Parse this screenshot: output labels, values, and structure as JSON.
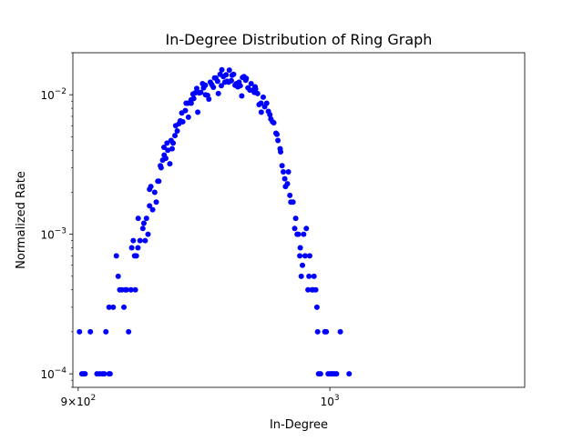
{
  "chart_data": {
    "type": "scatter",
    "title": "In-Degree Distribution of Ring Graph",
    "xlabel": "In-Degree",
    "ylabel": "Normalized Rate",
    "xscale": "log",
    "yscale": "log",
    "xlim": [
      898,
      1085
    ],
    "ylim": [
      8e-05,
      0.02
    ],
    "grid": false,
    "legend": "none",
    "marker_color": "#0000ff",
    "xticks": [
      {
        "value": 900,
        "label_base": "9×10",
        "label_exp": "2"
      },
      {
        "value": 1000,
        "label_base": "10",
        "label_exp": "3"
      }
    ],
    "yticks": [
      {
        "value": 0.0001,
        "label_base": "10",
        "label_exp": "−4"
      },
      {
        "value": 0.001,
        "label_base": "10",
        "label_exp": "−3"
      },
      {
        "value": 0.01,
        "label_base": "10",
        "label_exp": "−2"
      }
    ],
    "points": [
      [
        900.5,
        0.0002
      ],
      [
        901.4,
        0.0001
      ],
      [
        902.0,
        0.0001
      ],
      [
        902.6,
        0.0001
      ],
      [
        904.6,
        0.0002
      ],
      [
        907.1,
        0.0001
      ],
      [
        908.1,
        0.0001
      ],
      [
        909.2,
        0.0001
      ],
      [
        909.9,
        0.0001
      ],
      [
        911.7,
        0.0001
      ],
      [
        912.1,
        0.0001
      ],
      [
        910.5,
        0.0002
      ],
      [
        911.7,
        0.0003
      ],
      [
        913.3,
        0.0003
      ],
      [
        914.5,
        0.0007
      ],
      [
        915.2,
        0.0005
      ],
      [
        915.8,
        0.0004
      ],
      [
        916.6,
        0.0004
      ],
      [
        917.4,
        0.0003
      ],
      [
        917.9,
        0.0004
      ],
      [
        918.4,
        0.0004
      ],
      [
        919.2,
        0.0002
      ],
      [
        920.1,
        0.0004
      ],
      [
        920.4,
        0.0008
      ],
      [
        921.0,
        0.0009
      ],
      [
        921.8,
        0.0004
      ],
      [
        921.5,
        0.0007
      ],
      [
        922.2,
        0.0007
      ],
      [
        922.8,
        0.0008
      ],
      [
        922.9,
        0.0013
      ],
      [
        923.6,
        0.0009
      ],
      [
        924.7,
        0.0011
      ],
      [
        925.1,
        0.0012
      ],
      [
        925.6,
        0.0009
      ],
      [
        926.1,
        0.0013
      ],
      [
        926.7,
        0.001
      ],
      [
        927.3,
        0.0016
      ],
      [
        927.3,
        0.0021
      ],
      [
        927.8,
        0.0022
      ],
      [
        928.5,
        0.0015
      ],
      [
        929.3,
        0.002
      ],
      [
        929.9,
        0.0017
      ],
      [
        930.5,
        0.0024
      ],
      [
        930.9,
        0.0024
      ],
      [
        931.5,
        0.0031
      ],
      [
        931.8,
        0.003
      ],
      [
        932.4,
        0.0034
      ],
      [
        932.9,
        0.0042
      ],
      [
        933.0,
        0.0037
      ],
      [
        933.6,
        0.0035
      ],
      [
        934.1,
        0.0045
      ],
      [
        934.4,
        0.004
      ],
      [
        935.2,
        0.0032
      ],
      [
        935.7,
        0.0047
      ],
      [
        936.1,
        0.0041
      ],
      [
        936.5,
        0.0045
      ],
      [
        937.2,
        0.0051
      ],
      [
        937.5,
        0.006
      ],
      [
        938.1,
        0.0055
      ],
      [
        938.8,
        0.0062
      ],
      [
        939.3,
        0.0065
      ],
      [
        939.9,
        0.0074
      ],
      [
        940.3,
        0.0064
      ],
      [
        941.3,
        0.0077
      ],
      [
        941.6,
        0.0087
      ],
      [
        942.3,
        0.0087
      ],
      [
        942.5,
        0.0069
      ],
      [
        943.6,
        0.0087
      ],
      [
        943.6,
        0.0092
      ],
      [
        944.3,
        0.0101
      ],
      [
        944.6,
        0.0094
      ],
      [
        945.1,
        0.0103
      ],
      [
        945.8,
        0.0111
      ],
      [
        946.2,
        0.0075
      ],
      [
        946.8,
        0.0103
      ],
      [
        947.4,
        0.0104
      ],
      [
        948.1,
        0.012
      ],
      [
        948.5,
        0.0112
      ],
      [
        949.2,
        0.0117
      ],
      [
        949.3,
        0.01
      ],
      [
        950.1,
        0.0099
      ],
      [
        950.6,
        0.0093
      ],
      [
        951.2,
        0.0123
      ],
      [
        951.8,
        0.0118
      ],
      [
        952.4,
        0.0113
      ],
      [
        952.9,
        0.0132
      ],
      [
        953.4,
        0.0132
      ],
      [
        954.1,
        0.0125
      ],
      [
        954.4,
        0.0102
      ],
      [
        955.1,
        0.014
      ],
      [
        955.6,
        0.0116
      ],
      [
        955.8,
        0.0151
      ],
      [
        956.4,
        0.0135
      ],
      [
        957.0,
        0.0123
      ],
      [
        957.5,
        0.0139
      ],
      [
        957.9,
        0.0125
      ],
      [
        958.5,
        0.0123
      ],
      [
        958.8,
        0.015
      ],
      [
        959.6,
        0.0126
      ],
      [
        959.9,
        0.0138
      ],
      [
        960.5,
        0.014
      ],
      [
        961.1,
        0.0117
      ],
      [
        961.6,
        0.012
      ],
      [
        962.2,
        0.0114
      ],
      [
        962.7,
        0.0123
      ],
      [
        963.2,
        0.0116
      ],
      [
        963.8,
        0.0098
      ],
      [
        964.1,
        0.0133
      ],
      [
        964.7,
        0.0135
      ],
      [
        965.4,
        0.0127
      ],
      [
        965.6,
        0.0131
      ],
      [
        966.3,
        0.0112
      ],
      [
        967.1,
        0.0108
      ],
      [
        967.6,
        0.012
      ],
      [
        968.3,
        0.0108
      ],
      [
        968.9,
        0.0104
      ],
      [
        969.2,
        0.0114
      ],
      [
        969.4,
        0.011
      ],
      [
        970.2,
        0.0102
      ],
      [
        970.8,
        0.0085
      ],
      [
        971.6,
        0.0087
      ],
      [
        971.7,
        0.0075
      ],
      [
        972.5,
        0.0096
      ],
      [
        973.1,
        0.0082
      ],
      [
        973.9,
        0.0087
      ],
      [
        974.6,
        0.0076
      ],
      [
        975.2,
        0.0072
      ],
      [
        975.6,
        0.0067
      ],
      [
        976.3,
        0.0064
      ],
      [
        976.8,
        0.0063
      ],
      [
        977.7,
        0.0053
      ],
      [
        978.1,
        0.0052
      ],
      [
        978.5,
        0.0047
      ],
      [
        979.4,
        0.0041
      ],
      [
        979.6,
        0.0039
      ],
      [
        980.2,
        0.0031
      ],
      [
        980.7,
        0.0028
      ],
      [
        981.3,
        0.0025
      ],
      [
        981.6,
        0.0022
      ],
      [
        982.4,
        0.0023
      ],
      [
        982.8,
        0.0028
      ],
      [
        983.4,
        0.0019
      ],
      [
        983.8,
        0.0017
      ],
      [
        984.7,
        0.0017
      ],
      [
        985.4,
        0.0011
      ],
      [
        985.8,
        0.0013
      ],
      [
        986.4,
        0.001
      ],
      [
        986.9,
        0.001
      ],
      [
        987.5,
        0.0007
      ],
      [
        987.7,
        0.0008
      ],
      [
        988.1,
        0.0005
      ],
      [
        988.6,
        0.0006
      ],
      [
        989.1,
        0.001
      ],
      [
        989.7,
        0.0007
      ],
      [
        990.2,
        0.0011
      ],
      [
        990.9,
        0.0004
      ],
      [
        991.3,
        0.0005
      ],
      [
        991.6,
        0.0007
      ],
      [
        992.6,
        0.0004
      ],
      [
        993.0,
        0.0004
      ],
      [
        993.4,
        0.0005
      ],
      [
        994.1,
        0.0004
      ],
      [
        994.6,
        0.0003
      ],
      [
        994.9,
        0.0002
      ],
      [
        995.3,
        0.0001
      ],
      [
        996.1,
        0.0001
      ],
      [
        997.9,
        0.0002
      ],
      [
        998.5,
        0.0002
      ],
      [
        999.3,
        0.0001
      ],
      [
        1000.2,
        0.0001
      ],
      [
        1000.8,
        0.0001
      ],
      [
        1001.4,
        0.0001
      ],
      [
        1002.1,
        0.0001
      ],
      [
        1002.8,
        0.0001
      ],
      [
        1004.4,
        0.0002
      ],
      [
        1008.1,
        0.0001
      ]
    ]
  }
}
